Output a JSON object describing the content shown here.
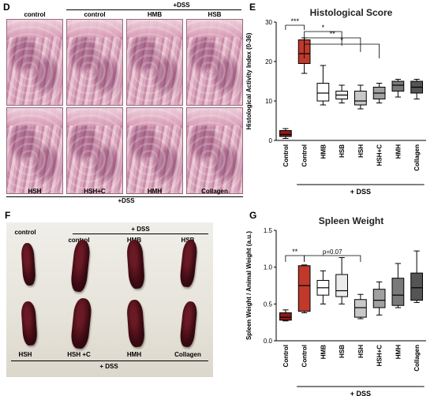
{
  "panel_d": {
    "letter": "D",
    "header_dss": "+DSS",
    "top_labels": [
      "control",
      "control",
      "HMB",
      "HSB"
    ],
    "bottom_labels": [
      "HSH",
      "HSH+C",
      "HMH",
      "Collagen"
    ],
    "footer_dss": "+DSS"
  },
  "panel_f": {
    "letter": "F",
    "header_dss": "+ DSS",
    "top_labels": [
      "control",
      "control",
      "HMB",
      "HSB"
    ],
    "bottom_labels": [
      "HSH",
      "HSH +C",
      "HMH",
      "Collagen"
    ],
    "footer_dss": "+ DSS"
  },
  "chart_data": [
    {
      "panel": "E",
      "type": "box",
      "title": "Histological Score",
      "ylabel": "Histological Activity Index (0-36)",
      "ylim": [
        0,
        30
      ],
      "yticks": [
        0,
        10,
        20,
        30
      ],
      "categories": [
        "Control",
        "Control",
        "HMB",
        "HSB",
        "HSH",
        "HSH+C",
        "HMH",
        "Collagen"
      ],
      "group_label": "+ DSS",
      "colors": [
        "#8b1a1a",
        "#c0392b",
        "#ffffff",
        "#ececec",
        "#c8c8c8",
        "#a0a0a0",
        "#7a7a7a",
        "#555555"
      ],
      "boxes": [
        {
          "min": 0.5,
          "q1": 1.0,
          "median": 1.5,
          "q3": 2.5,
          "max": 3.0
        },
        {
          "min": 17,
          "q1": 19.5,
          "median": 22,
          "q3": 25.5,
          "max": 26
        },
        {
          "min": 9,
          "q1": 10,
          "median": 12,
          "q3": 14.5,
          "max": 19
        },
        {
          "min": 9.5,
          "q1": 10.5,
          "median": 11.5,
          "q3": 12.5,
          "max": 14
        },
        {
          "min": 8,
          "q1": 9,
          "median": 10,
          "q3": 12.5,
          "max": 14
        },
        {
          "min": 9.5,
          "q1": 10.5,
          "median": 12,
          "q3": 13.5,
          "max": 14.5
        },
        {
          "min": 11,
          "q1": 12.5,
          "median": 14,
          "q3": 15,
          "max": 15.5
        },
        {
          "min": 10.5,
          "q1": 12,
          "median": 13.5,
          "q3": 15,
          "max": 15.5
        }
      ],
      "significance": [
        {
          "from": 1,
          "to": 0,
          "label": "***"
        },
        {
          "from": 1,
          "to": 3,
          "label": "*"
        },
        {
          "from": 1,
          "to": 4,
          "label": "**"
        },
        {
          "from": 1,
          "to": 5,
          "label": "*"
        }
      ]
    },
    {
      "panel": "G",
      "type": "box",
      "title": "Spleen Weight",
      "ylabel": "Spleen Weight / Animal Weight (a.u.)",
      "ylim": [
        0,
        1.5
      ],
      "yticks": [
        0.0,
        0.5,
        1.0,
        1.5
      ],
      "categories": [
        "Control",
        "Control",
        "HMB",
        "HSB",
        "HSH",
        "HSH+C",
        "HMH",
        "Collagen"
      ],
      "group_label": "+ DSS",
      "colors": [
        "#8b1a1a",
        "#c0392b",
        "#ffffff",
        "#ececec",
        "#c8c8c8",
        "#a0a0a0",
        "#7a7a7a",
        "#555555"
      ],
      "boxes": [
        {
          "min": 0.27,
          "q1": 0.28,
          "median": 0.32,
          "q3": 0.38,
          "max": 0.42
        },
        {
          "min": 0.38,
          "q1": 0.4,
          "median": 0.75,
          "q3": 1.02,
          "max": 1.03
        },
        {
          "min": 0.5,
          "q1": 0.62,
          "median": 0.72,
          "q3": 0.82,
          "max": 0.95
        },
        {
          "min": 0.5,
          "q1": 0.6,
          "median": 0.68,
          "q3": 0.9,
          "max": 1.13
        },
        {
          "min": 0.3,
          "q1": 0.32,
          "median": 0.45,
          "q3": 0.56,
          "max": 0.63
        },
        {
          "min": 0.35,
          "q1": 0.45,
          "median": 0.55,
          "q3": 0.7,
          "max": 0.8
        },
        {
          "min": 0.45,
          "q1": 0.48,
          "median": 0.62,
          "q3": 0.85,
          "max": 1.05
        },
        {
          "min": 0.52,
          "q1": 0.55,
          "median": 0.72,
          "q3": 0.92,
          "max": 1.22
        }
      ],
      "significance": [
        {
          "from": 0,
          "to": 1,
          "label": "**"
        },
        {
          "from": 1,
          "to": 4,
          "label": "p=0.07"
        }
      ]
    }
  ]
}
